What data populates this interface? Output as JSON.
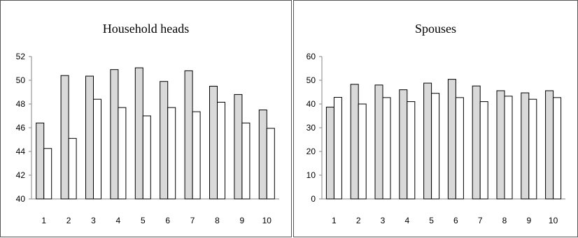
{
  "chart_data": [
    {
      "type": "bar",
      "title": "Household heads",
      "categories": [
        "1",
        "2",
        "3",
        "4",
        "5",
        "6",
        "7",
        "8",
        "9",
        "10"
      ],
      "series": [
        {
          "values": [
            46.4,
            50.4,
            50.35,
            50.9,
            51.05,
            49.9,
            50.8,
            49.5,
            48.8,
            47.5
          ],
          "color": "#d9d9d9"
        },
        {
          "values": [
            44.25,
            45.1,
            48.4,
            47.7,
            47.0,
            47.7,
            47.35,
            48.15,
            46.4,
            45.95
          ],
          "color": "#ffffff"
        }
      ],
      "ylim": [
        40,
        52
      ],
      "yticks": [
        "40",
        "42",
        "44",
        "46",
        "48",
        "50",
        "52"
      ],
      "xlabel": "",
      "ylabel": "",
      "grid": false
    },
    {
      "type": "bar",
      "title": "Spouses",
      "categories": [
        "1",
        "2",
        "3",
        "4",
        "5",
        "6",
        "7",
        "8",
        "9",
        "10"
      ],
      "series": [
        {
          "values": [
            38.7,
            48.3,
            48.0,
            46.0,
            48.8,
            50.4,
            47.6,
            45.6,
            44.7,
            45.6
          ],
          "color": "#d9d9d9"
        },
        {
          "values": [
            42.8,
            40.0,
            42.7,
            41.0,
            44.5,
            42.7,
            41.0,
            43.3,
            42.0,
            42.7
          ],
          "color": "#ffffff"
        }
      ],
      "ylim": [
        0,
        60
      ],
      "yticks": [
        "0",
        "10",
        "20",
        "30",
        "40",
        "50",
        "60"
      ],
      "xlabel": "",
      "ylabel": "",
      "grid": false
    }
  ]
}
